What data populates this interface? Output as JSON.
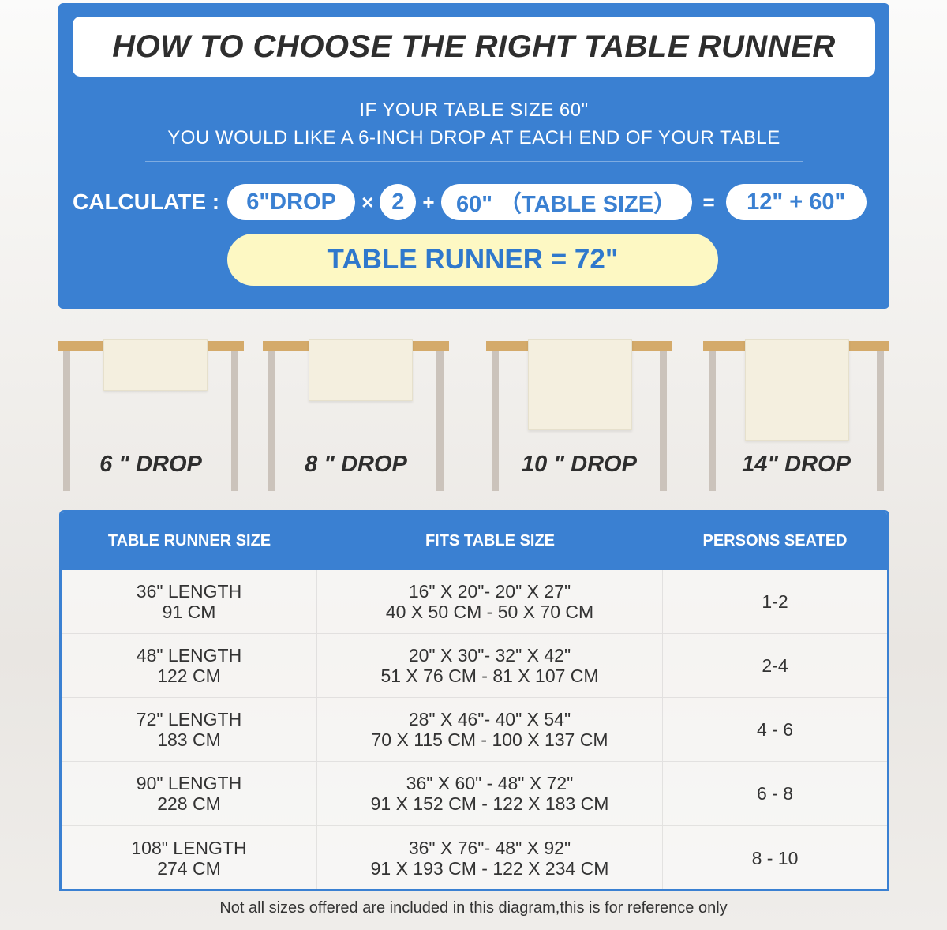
{
  "title": "HOW TO CHOOSE THE RIGHT TABLE RUNNER",
  "subtitle": [
    "IF YOUR TABLE SIZE 60\"",
    "YOU WOULD LIKE A 6-INCH DROP AT EACH END OF YOUR TABLE"
  ],
  "calculate": {
    "label": "CALCULATE :",
    "drop": "6\"DROP",
    "times": "×",
    "multiplier": "2",
    "plus": "+",
    "table": "60\" （TABLE SIZE）",
    "equals": "=",
    "sum": "12\" + 60\"",
    "result": "TABLE RUNNER = 72\""
  },
  "drops": [
    {
      "label": "6 \" DROP"
    },
    {
      "label": "8 \" DROP"
    },
    {
      "label": "10 \" DROP"
    },
    {
      "label": "14\" DROP"
    }
  ],
  "table": {
    "headers": [
      "TABLE RUNNER SIZE",
      "FITS TABLE SIZE",
      "PERSONS SEATED"
    ],
    "rows": [
      {
        "length": "36\" LENGTH",
        "cm": "91 CM",
        "fits_in": "16\" X 20\"- 20\" X 27\"",
        "fits_cm": "40 X 50 CM - 50 X 70 CM",
        "persons": "1-2"
      },
      {
        "length": "48\" LENGTH",
        "cm": "122 CM",
        "fits_in": "20\" X 30\"- 32\" X 42\"",
        "fits_cm": "51 X 76 CM - 81 X 107 CM",
        "persons": "2-4"
      },
      {
        "length": "72\" LENGTH",
        "cm": "183 CM",
        "fits_in": "28\" X 46\"- 40\" X 54\"",
        "fits_cm": "70 X 115 CM - 100 X 137 CM",
        "persons": "4 - 6"
      },
      {
        "length": "90\" LENGTH",
        "cm": "228 CM",
        "fits_in": "36\" X 60\" - 48\" X 72\"",
        "fits_cm": "91 X 152 CM - 122 X 183 CM",
        "persons": "6 - 8"
      },
      {
        "length": "108\" LENGTH",
        "cm": "274 CM",
        "fits_in": "36\" X 76\"- 48\" X 92\"",
        "fits_cm": "91 X 193 CM - 122 X 234 CM",
        "persons": "8 - 10"
      }
    ]
  },
  "note": "Not all sizes offered are included in this diagram,this is for reference only",
  "colors": {
    "primary": "#3a80d2",
    "highlight": "#fdf8c3",
    "tabletop": "#d4aa6a"
  }
}
